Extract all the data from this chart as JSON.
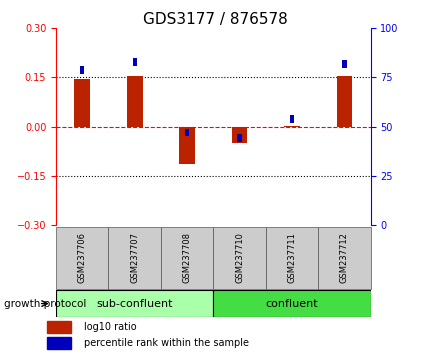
{
  "title": "GDS3177 / 876578",
  "samples": [
    "GSM237706",
    "GSM237707",
    "GSM237708",
    "GSM237710",
    "GSM237711",
    "GSM237712"
  ],
  "log10_ratio": [
    0.145,
    0.155,
    -0.115,
    -0.05,
    0.003,
    0.155
  ],
  "percentile_rank": [
    79,
    83,
    47,
    44,
    54,
    82
  ],
  "bar_color_red": "#bb2200",
  "bar_color_blue": "#0000bb",
  "ylim_left": [
    -0.3,
    0.3
  ],
  "ylim_right": [
    0,
    100
  ],
  "yticks_left": [
    -0.3,
    -0.15,
    0,
    0.15,
    0.3
  ],
  "yticks_right": [
    0,
    25,
    50,
    75,
    100
  ],
  "hlines": [
    0.15,
    0.0,
    -0.15
  ],
  "hline_styles": [
    "dotted",
    "dashed",
    "dotted"
  ],
  "hline_colors": [
    "black",
    "red",
    "black"
  ],
  "group1_label": "sub-confluent",
  "group2_label": "confluent",
  "group1_count": 3,
  "group2_count": 3,
  "group1_color": "#aaffaa",
  "group2_color": "#44dd44",
  "growth_protocol_label": "growth protocol",
  "legend_log10": "log10 ratio",
  "legend_percentile": "percentile rank within the sample",
  "red_bar_width": 0.3,
  "blue_bar_width": 0.08,
  "title_fontsize": 11,
  "tick_fontsize": 7,
  "sample_fontsize": 6,
  "group_fontsize": 8,
  "legend_fontsize": 7,
  "protocol_fontsize": 7.5
}
